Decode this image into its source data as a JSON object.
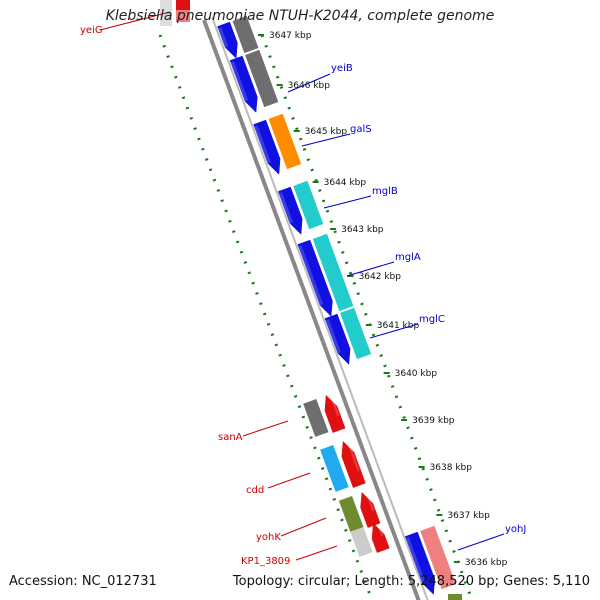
{
  "header": {
    "title": "Klebsiella pneumoniae NTUH-K2044, complete genome"
  },
  "footer": {
    "accession": "Accession: NC_012731",
    "summary": "Topology: circular; Length: 5,248,520 bp; Genes: 5,110"
  },
  "scale_ticks": [
    {
      "label": "3647 kbp"
    },
    {
      "label": "3646 kbp"
    },
    {
      "label": "3645 kbp"
    },
    {
      "label": "3644 kbp"
    },
    {
      "label": "3643 kbp"
    },
    {
      "label": "3642 kbp"
    },
    {
      "label": "3641 kbp"
    },
    {
      "label": "3640 kbp"
    },
    {
      "label": "3639 kbp"
    },
    {
      "label": "3638 kbp"
    },
    {
      "label": "3637 kbp"
    },
    {
      "label": "3636 kbp"
    }
  ],
  "gene_labels": [
    {
      "name": "yeiG",
      "color": "#cc0000"
    },
    {
      "name": "yeiB",
      "color": "#0000cc"
    },
    {
      "name": "galS",
      "color": "#0000cc"
    },
    {
      "name": "mglB",
      "color": "#0000cc"
    },
    {
      "name": "mglA",
      "color": "#0000cc"
    },
    {
      "name": "mglC",
      "color": "#0000cc"
    },
    {
      "name": "sanA",
      "color": "#cc0000"
    },
    {
      "name": "cdd",
      "color": "#cc0000"
    },
    {
      "name": "yohK",
      "color": "#cc0000"
    },
    {
      "name": "KP1_3809",
      "color": "#cc0000"
    },
    {
      "name": "yohJ",
      "color": "#0000cc"
    }
  ],
  "colors": {
    "forward_cds": "#1010e0",
    "reverse_cds": "#e01010",
    "cog_grey": "#6e6e6e",
    "cog_orange": "#ff8c00",
    "cog_cyan": "#22cccc",
    "cog_lightblue": "#22aaee",
    "cog_olive": "#6e8c2e",
    "cog_pink": "#f08080",
    "backbone": "#888888",
    "gc_track": "#1a7a1a"
  }
}
